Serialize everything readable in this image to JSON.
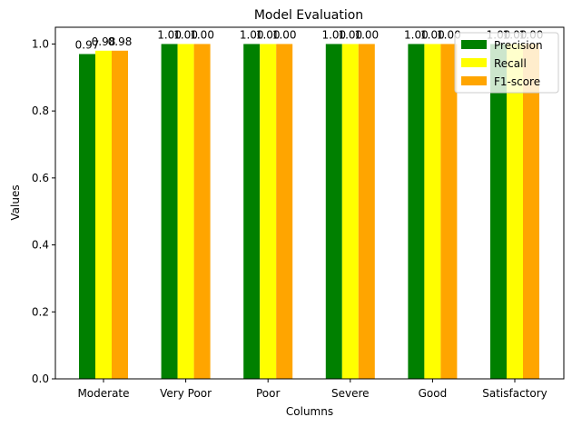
{
  "chart_data": {
    "type": "bar",
    "title": "Model Evaluation",
    "xlabel": "Columns",
    "ylabel": "Values",
    "categories": [
      "Moderate",
      "Very Poor",
      "Poor",
      "Severe",
      "Good",
      "Satisfactory"
    ],
    "series": [
      {
        "name": "Precision",
        "color": "#008000",
        "values": [
          0.97,
          1.0,
          1.0,
          1.0,
          1.0,
          1.0
        ],
        "labels": [
          "0.97",
          "1.00",
          "1.00",
          "1.00",
          "1.00",
          "1.00"
        ]
      },
      {
        "name": "Recall",
        "color": "#ffff00",
        "values": [
          0.98,
          1.0,
          1.0,
          1.0,
          1.0,
          1.0
        ],
        "labels": [
          "0.98",
          "1.00",
          "1.00",
          "1.00",
          "1.00",
          "1.00"
        ]
      },
      {
        "name": "F1-score",
        "color": "#ffa500",
        "values": [
          0.98,
          1.0,
          1.0,
          1.0,
          1.0,
          1.0
        ],
        "labels": [
          "0.98",
          "1.00",
          "1.00",
          "1.00",
          "1.00",
          "1.00"
        ]
      }
    ],
    "ylim": [
      0,
      1.05
    ],
    "yticks": [
      0.0,
      0.2,
      0.4,
      0.6,
      0.8,
      1.0
    ],
    "ytick_labels": [
      "0.0",
      "0.2",
      "0.4",
      "0.6",
      "0.8",
      "1.0"
    ],
    "grid": false,
    "legend_position": "top-right"
  }
}
